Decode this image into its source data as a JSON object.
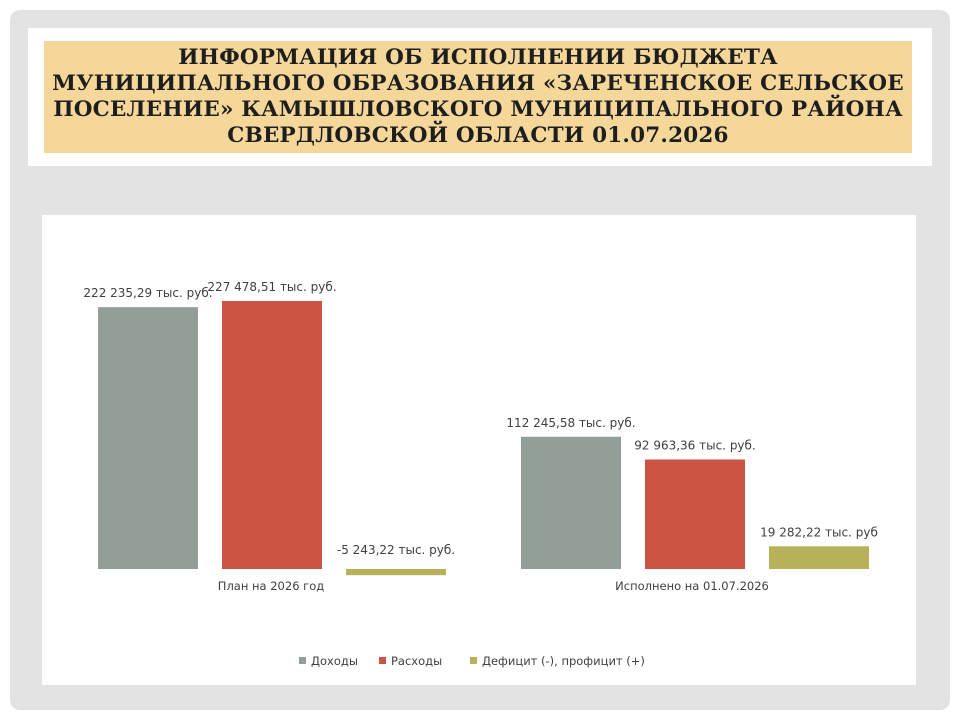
{
  "title": "ИНФОРМАЦИЯ ОБ ИСПОЛНЕНИИ БЮДЖЕТА\nМУНИЦИПАЛЬНОГО  ОБРАЗОВАНИЯ «ЗАРЕЧЕНСКОЕ  СЕЛЬСКОЕ\nПОСЕЛЕНИЕ» КАМЫШЛОВСКОГО МУНИЦИПАЛЬНОГО РАЙОНА\nСВЕРДЛОВСКОЙ  ОБЛАСТИ  01.07.2026",
  "chart_data": {
    "type": "bar",
    "categories": [
      "План на 2026 год",
      "Исполнено на 01.07.2026"
    ],
    "series": [
      {
        "name": "Доходы",
        "color": "#919f98",
        "values": [
          222235.29,
          112245.58
        ],
        "labels": [
          "222 235,29 тыс. руб.",
          "112 245,58 тыс. руб."
        ]
      },
      {
        "name": "Расходы",
        "color": "#cb5543",
        "values": [
          227478.51,
          92963.36
        ],
        "labels": [
          "227 478,51 тыс. руб.",
          "92 963,36 тыс. руб."
        ]
      },
      {
        "name": "Дефицит (-), профицит (+)",
        "color": "#b7b25a",
        "values": [
          -5243.22,
          19282.22
        ],
        "labels": [
          "-5 243,22 тыс. руб.",
          "19 282,22 тыс. руб"
        ]
      }
    ],
    "legend_position": "bottom",
    "grid": false,
    "axes_visible": false
  }
}
